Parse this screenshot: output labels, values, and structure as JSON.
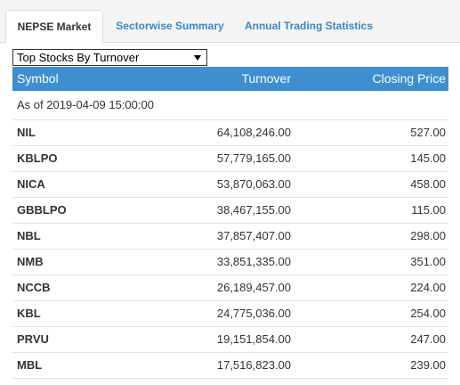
{
  "tabs": [
    {
      "label": "NEPSE Market",
      "active": true
    },
    {
      "label": "Sectorwise Summary",
      "active": false
    },
    {
      "label": "Annual Trading Statistics",
      "active": false
    }
  ],
  "select": {
    "selected": "Top Stocks By Turnover"
  },
  "table": {
    "headers": [
      "Symbol",
      "Turnover",
      "Closing Price"
    ],
    "as_of": "As of 2019-04-09 15:00:00",
    "rows": [
      {
        "symbol": "NIL",
        "turnover": "64,108,246.00",
        "closing": "527.00"
      },
      {
        "symbol": "KBLPO",
        "turnover": "57,779,165.00",
        "closing": "145.00"
      },
      {
        "symbol": "NICA",
        "turnover": "53,870,063.00",
        "closing": "458.00"
      },
      {
        "symbol": "GBBLPO",
        "turnover": "38,467,155.00",
        "closing": "115.00"
      },
      {
        "symbol": "NBL",
        "turnover": "37,857,407.00",
        "closing": "298.00"
      },
      {
        "symbol": "NMB",
        "turnover": "33,851,335.00",
        "closing": "351.00"
      },
      {
        "symbol": "NCCB",
        "turnover": "26,189,457.00",
        "closing": "224.00"
      },
      {
        "symbol": "KBL",
        "turnover": "24,775,036.00",
        "closing": "254.00"
      },
      {
        "symbol": "PRVU",
        "turnover": "19,151,854.00",
        "closing": "247.00"
      },
      {
        "symbol": "MBL",
        "turnover": "17,516,823.00",
        "closing": "239.00"
      }
    ]
  },
  "colors": {
    "header_bg": "#3d8fd1",
    "tab_link": "#3a87c8",
    "tabbar_bg": "#f5f5f5"
  }
}
